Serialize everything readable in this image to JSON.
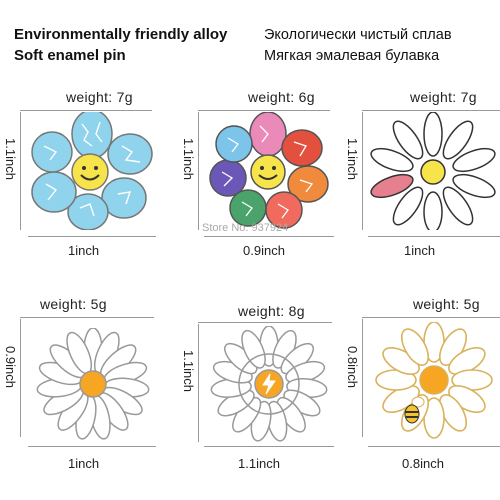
{
  "header": {
    "left_line1": "Environmentally friendly alloy",
    "left_line2": "Soft enamel pin",
    "right_line1": "Экологически чистый сплав",
    "right_line2": "Мягкая эмалевая булавка"
  },
  "watermark": "Store No. 937924",
  "products": [
    {
      "weight": "weight: 7g",
      "height_label": "1.1inch",
      "width_label": "1inch",
      "icon": "blue-smiley-flower-icon"
    },
    {
      "weight": "weight: 6g",
      "height_label": "1.1inch",
      "width_label": "0.9inch",
      "icon": "rainbow-smiley-flower-icon"
    },
    {
      "weight": "weight: 7g",
      "height_label": "1.1inch",
      "width_label": "1inch",
      "icon": "text-daisy-icon"
    },
    {
      "weight": "weight: 5g",
      "height_label": "0.9inch",
      "width_label": "1inch",
      "icon": "white-daisy-icon"
    },
    {
      "weight": "weight: 8g",
      "height_label": "1.1inch",
      "width_label": "1.1inch",
      "icon": "lightning-daisy-icon"
    },
    {
      "weight": "weight: 5g",
      "height_label": "0.8inch",
      "width_label": "0.8inch",
      "icon": "bee-daisy-icon"
    }
  ],
  "colors": {
    "blue_petal": "#8fd3ec",
    "smiley_yellow": "#f7e34a",
    "daisy_center": "#f6a623",
    "text_petal_pink": "#e7808e"
  }
}
